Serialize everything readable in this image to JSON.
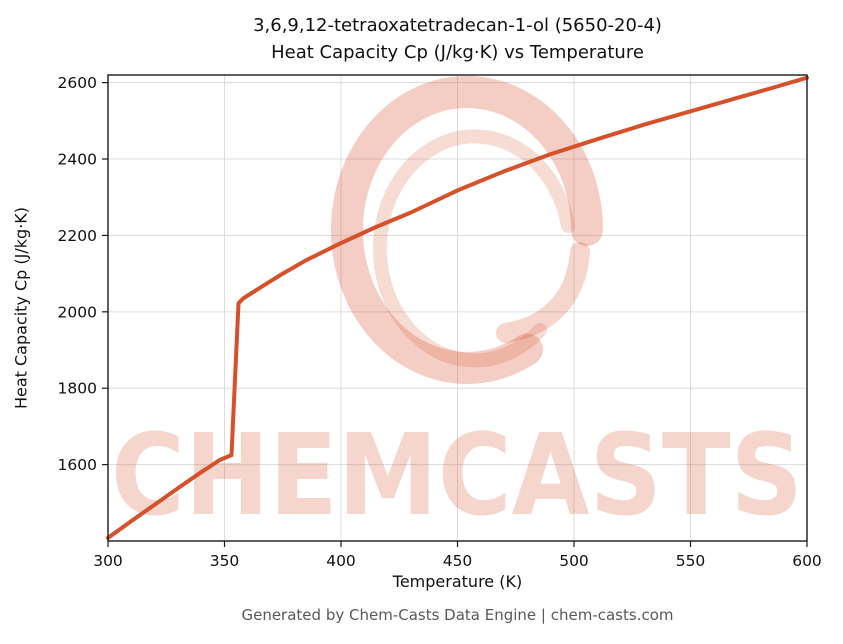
{
  "header": {
    "title_line1": "3,6,9,12-tetraoxatetradecan-1-ol (5650-20-4)",
    "title_line2": "Heat Capacity Cp (J/kg·K) vs Temperature"
  },
  "watermark": {
    "text": "CHEMCASTS"
  },
  "footer": {
    "text": "Generated by Chem-Casts Data Engine | chem-casts.com"
  },
  "chart_data": {
    "type": "line",
    "title": "3,6,9,12-tetraoxatetradecan-1-ol (5650-20-4) Heat Capacity Cp (J/kg·K) vs Temperature",
    "xlabel": "Temperature (K)",
    "ylabel": "Heat Capacity Cp (J/kg·K)",
    "xlim": [
      300,
      600
    ],
    "ylim": [
      1400,
      2620
    ],
    "xticks": [
      300,
      350,
      400,
      450,
      500,
      550,
      600
    ],
    "yticks": [
      1600,
      1800,
      2000,
      2200,
      2400,
      2600
    ],
    "grid": true,
    "legend": "none",
    "line_color": "#d6502a",
    "grid_color": "#dcdcdc",
    "watermark_opacity": 0.24,
    "series": [
      {
        "name": "Heat Capacity Cp",
        "x": [
          300,
          310,
          320,
          330,
          340,
          348,
          353,
          356,
          358,
          365,
          375,
          385,
          400,
          415,
          430,
          450,
          470,
          490,
          510,
          530,
          550,
          570,
          585,
          600
        ],
        "y": [
          1408,
          1452,
          1495,
          1538,
          1580,
          1612,
          1625,
          2022,
          2035,
          2062,
          2100,
          2135,
          2180,
          2222,
          2260,
          2318,
          2368,
          2413,
          2452,
          2490,
          2525,
          2560,
          2586,
          2613
        ]
      }
    ]
  }
}
